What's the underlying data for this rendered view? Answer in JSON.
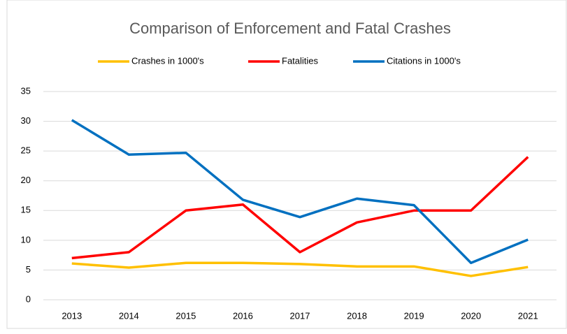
{
  "chart_data": {
    "type": "line",
    "title": "Comparison of Enforcement and Fatal Crashes",
    "categories": [
      "2013",
      "2014",
      "2015",
      "2016",
      "2017",
      "2018",
      "2019",
      "2020",
      "2021"
    ],
    "series": [
      {
        "name": "Crashes in 1000's",
        "color": "#ffc000",
        "values": [
          6.1,
          5.4,
          6.2,
          6.2,
          6.0,
          5.6,
          5.6,
          4.0,
          5.5
        ]
      },
      {
        "name": "Fatalities",
        "color": "#ff0000",
        "values": [
          7,
          8,
          15,
          16,
          8,
          13,
          15,
          15,
          24
        ]
      },
      {
        "name": "Citations in 1000's",
        "color": "#0070c0",
        "values": [
          30.2,
          24.4,
          24.7,
          16.8,
          13.9,
          17.0,
          15.9,
          6.2,
          10.1
        ]
      }
    ],
    "ylim": [
      0,
      35
    ],
    "yticks": [
      0,
      5,
      10,
      15,
      20,
      25,
      30,
      35
    ],
    "grid": true,
    "legend": "top"
  }
}
